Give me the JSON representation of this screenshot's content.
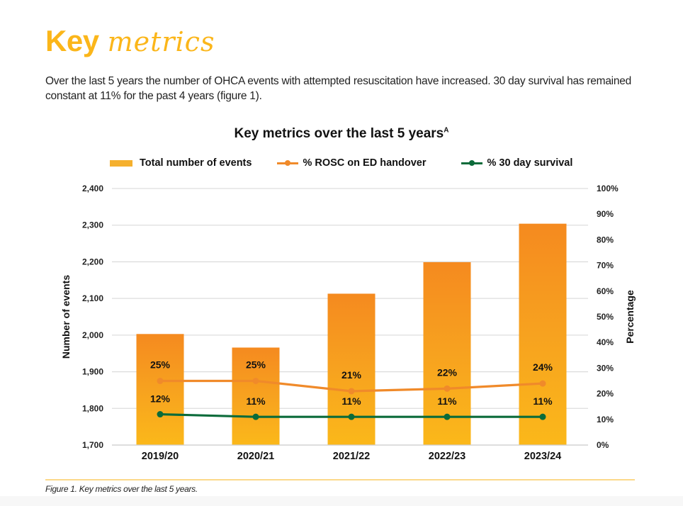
{
  "page": {
    "title_bold": "Key",
    "title_script": "metrics",
    "intro": "Over the last 5 years the number of OHCA events with attempted resuscitation have increased. 30 day survival has remained constant at 11% for the past 4 years (figure 1).",
    "caption": "Figure 1. Key metrics over the last 5 years."
  },
  "colors": {
    "title": "#FBB61A",
    "bar_top": "#F58A1F",
    "bar_bottom": "#FBB81A",
    "rosc": "#F08A2A",
    "survival": "#0B6B3A",
    "grid": "#DDDDDD"
  },
  "chart_data": {
    "type": "bar+line",
    "title": "Key metrics over the last 5 years",
    "title_superscript": "A",
    "categories": [
      "2019/20",
      "2020/21",
      "2021/22",
      "2022/23",
      "2023/24"
    ],
    "legend": [
      "Total number of events",
      "% ROSC on ED handover",
      "% 30 day survival"
    ],
    "legend_position": "top",
    "ylabel_left": "Number of events",
    "ylabel_right": "Percentage",
    "ylim_left": [
      1700,
      2400
    ],
    "yticks_left": [
      "1,700",
      "1,800",
      "1,900",
      "2,000",
      "2,100",
      "2,200",
      "2,300",
      "2,400"
    ],
    "yticks_left_values": [
      1700,
      1800,
      1900,
      2000,
      2100,
      2200,
      2300,
      2400
    ],
    "ylim_right": [
      0,
      100
    ],
    "yticks_right": [
      "0%",
      "10%",
      "20%",
      "30%",
      "40%",
      "50%",
      "60%",
      "70%",
      "80%",
      "90%",
      "100%"
    ],
    "yticks_right_values": [
      0,
      10,
      20,
      30,
      40,
      50,
      60,
      70,
      80,
      90,
      100
    ],
    "grid": true,
    "series": [
      {
        "name": "Total number of events",
        "type": "bar",
        "axis": "left",
        "values": [
          2003,
          1966,
          2113,
          2199,
          2304
        ]
      },
      {
        "name": "% ROSC on ED handover",
        "type": "line",
        "axis": "right",
        "values": [
          25,
          25,
          21,
          22,
          24
        ],
        "labels": [
          "25%",
          "25%",
          "21%",
          "22%",
          "24%"
        ]
      },
      {
        "name": "% 30 day survival",
        "type": "line",
        "axis": "right",
        "values": [
          12,
          11,
          11,
          11,
          11
        ],
        "labels": [
          "12%",
          "11%",
          "11%",
          "11%",
          "11%"
        ]
      }
    ]
  }
}
